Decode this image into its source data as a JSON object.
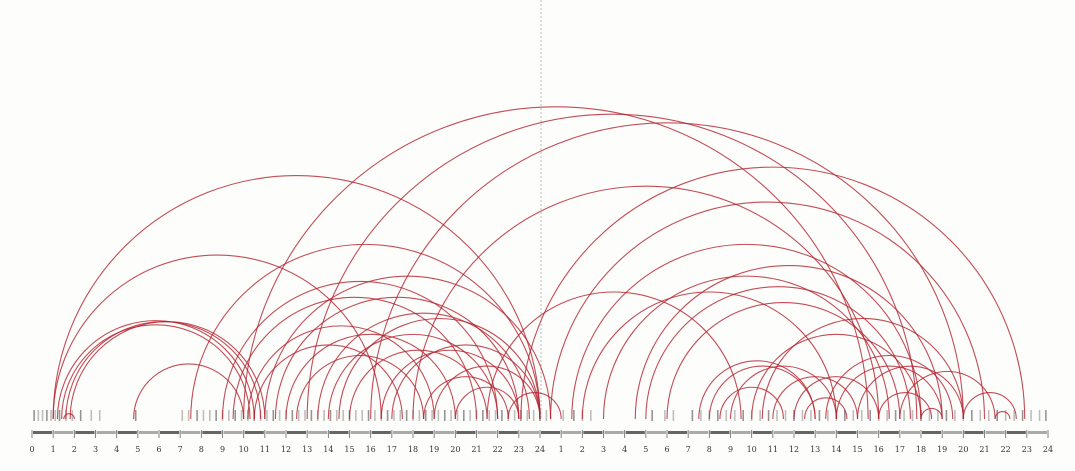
{
  "chart_data": {
    "type": "arc",
    "xlim": [
      0,
      48
    ],
    "xticks": [
      0,
      1,
      2,
      3,
      4,
      5,
      6,
      7,
      8,
      9,
      10,
      11,
      12,
      13,
      14,
      15,
      16,
      17,
      18,
      19,
      20,
      21,
      22,
      23,
      24,
      {
        "value": 25,
        "label": "1"
      },
      {
        "value": 26,
        "label": "2"
      },
      {
        "value": 27,
        "label": "3"
      },
      {
        "value": 28,
        "label": "4"
      },
      {
        "value": 29,
        "label": "5"
      },
      {
        "value": 30,
        "label": "6"
      },
      {
        "value": 31,
        "label": "7"
      },
      {
        "value": 32,
        "label": "8"
      },
      {
        "value": 33,
        "label": "9"
      },
      {
        "value": 34,
        "label": "10"
      },
      {
        "value": 35,
        "label": "11"
      },
      {
        "value": 36,
        "label": "12"
      },
      {
        "value": 37,
        "label": "13"
      },
      {
        "value": 38,
        "label": "14"
      },
      {
        "value": 39,
        "label": "15"
      },
      {
        "value": 40,
        "label": "16"
      },
      {
        "value": 41,
        "label": "17"
      },
      {
        "value": 42,
        "label": "18"
      },
      {
        "value": 43,
        "label": "19"
      },
      {
        "value": 44,
        "label": "20"
      },
      {
        "value": 45,
        "label": "21"
      },
      {
        "value": 46,
        "label": "22"
      },
      {
        "value": 47,
        "label": "23"
      },
      {
        "value": 48,
        "label": "24"
      }
    ],
    "arc_color": "#b3202e",
    "event_color": "#8a8a8a",
    "arcs": [
      [
        1,
        24
      ],
      [
        1,
        16.5
      ],
      [
        1.2,
        10.5
      ],
      [
        1.4,
        10.3
      ],
      [
        1.6,
        10.8
      ],
      [
        1.8,
        11
      ],
      [
        1.5,
        2
      ],
      [
        4.8,
        10
      ],
      [
        7.5,
        24
      ],
      [
        9,
        22
      ],
      [
        9.5,
        21
      ],
      [
        10,
        39.5
      ],
      [
        10.2,
        19
      ],
      [
        10.5,
        17.5
      ],
      [
        11,
        24.5
      ],
      [
        11.5,
        23
      ],
      [
        12,
        20
      ],
      [
        12.5,
        18.5
      ],
      [
        13,
        41.8
      ],
      [
        13.5,
        23.5
      ],
      [
        14,
        22
      ],
      [
        14.5,
        24
      ],
      [
        15,
        21.5
      ],
      [
        16,
        44
      ],
      [
        16.5,
        23
      ],
      [
        17,
        24
      ],
      [
        18,
        40
      ],
      [
        18.5,
        22.5
      ],
      [
        19,
        24
      ],
      [
        20,
        23
      ],
      [
        21.5,
        33.5
      ],
      [
        22.5,
        25
      ],
      [
        23.1,
        46.9
      ],
      [
        24.5,
        45
      ],
      [
        25.5,
        42
      ],
      [
        27,
        40.5
      ],
      [
        28.5,
        43
      ],
      [
        30,
        41
      ],
      [
        31.5,
        37
      ],
      [
        32,
        37
      ],
      [
        32.5,
        35.5
      ],
      [
        33,
        38
      ],
      [
        34,
        42
      ],
      [
        34.5,
        44
      ],
      [
        35,
        39
      ],
      [
        36,
        40
      ],
      [
        36.5,
        38.5
      ],
      [
        37.5,
        43.5
      ],
      [
        38,
        43
      ],
      [
        39,
        44
      ],
      [
        40,
        42.5
      ],
      [
        41,
        45.5
      ],
      [
        42,
        43
      ],
      [
        44,
        46.5
      ],
      [
        45.5,
        46.2
      ],
      [
        29,
        41.5
      ],
      [
        26,
        38
      ]
    ],
    "events": [
      0.1,
      0.3,
      0.5,
      0.7,
      0.9,
      1.1,
      1.3,
      1.6,
      1.9,
      2.3,
      2.8,
      3.2,
      4.9,
      7.1,
      7.4,
      7.8,
      8.1,
      8.4,
      8.7,
      9.0,
      9.3,
      9.6,
      9.9,
      10.2,
      10.5,
      10.8,
      11.1,
      11.4,
      11.7,
      12.0,
      12.3,
      12.6,
      12.9,
      13.2,
      13.5,
      13.8,
      14.1,
      14.4,
      14.7,
      15.0,
      15.3,
      15.6,
      15.9,
      16.2,
      16.5,
      16.8,
      17.1,
      17.4,
      17.7,
      18.0,
      18.3,
      18.6,
      18.9,
      19.2,
      19.5,
      19.8,
      20.1,
      20.4,
      20.7,
      21.0,
      21.3,
      21.6,
      21.9,
      22.2,
      22.5,
      22.8,
      23.1,
      23.4,
      23.7,
      24.0,
      24.3,
      25.1,
      25.6,
      26.0,
      26.4,
      29.3,
      29.9,
      30.3,
      31.2,
      31.6,
      32.0,
      32.4,
      32.8,
      33.2,
      33.6,
      34.0,
      34.4,
      34.8,
      35.2,
      35.6,
      36.0,
      36.4,
      36.8,
      37.2,
      37.6,
      38.0,
      38.4,
      38.8,
      39.2,
      39.6,
      40.0,
      40.4,
      40.8,
      41.2,
      41.6,
      42.0,
      42.4,
      42.8,
      43.2,
      43.6,
      44.0,
      44.4,
      44.8,
      45.2,
      45.6,
      46.0,
      46.4,
      46.8,
      47.2,
      47.6,
      47.9
    ]
  }
}
